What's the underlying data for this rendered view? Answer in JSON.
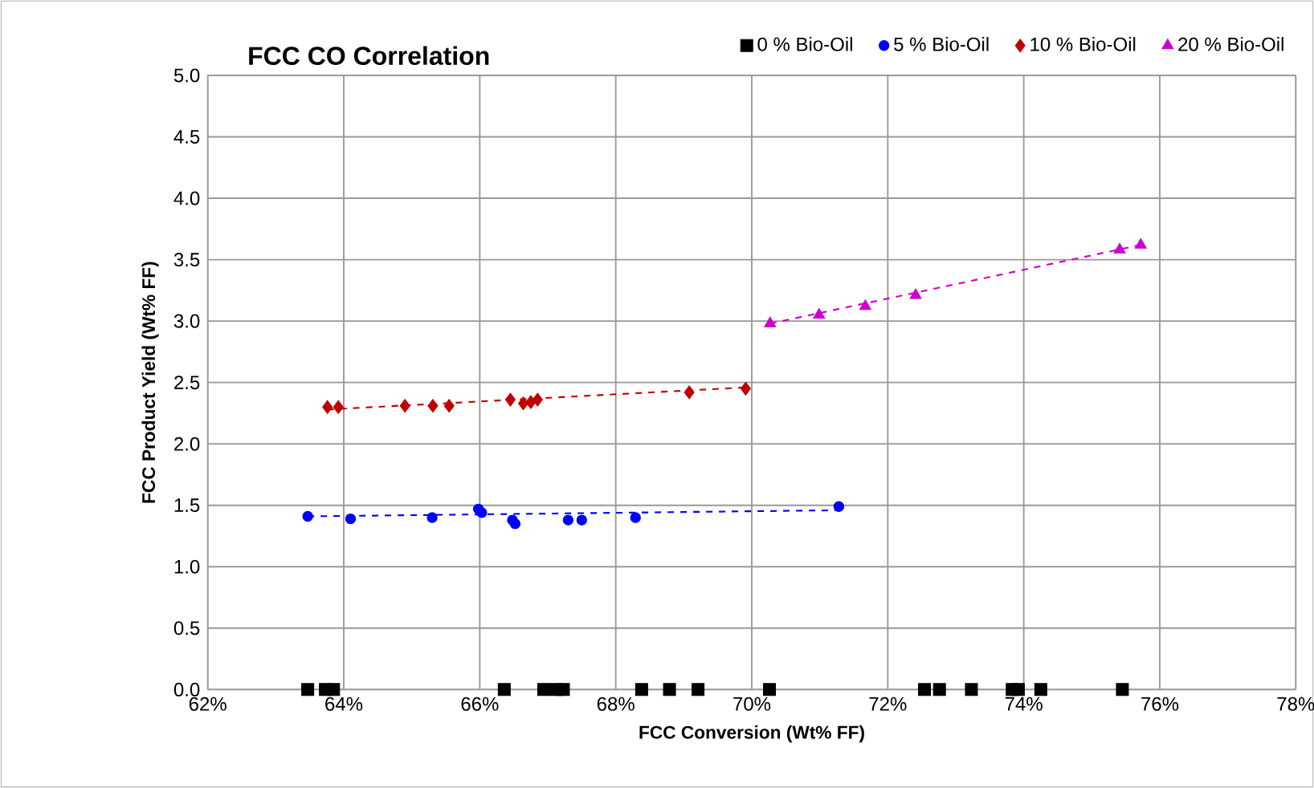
{
  "chart_data": {
    "type": "scatter",
    "title": "FCC CO Correlation",
    "xlabel": "FCC Conversion (Wt% FF)",
    "ylabel": "FCC Product Yield (Wt% FF)",
    "series": [
      {
        "name": "0 % Bio-Oil",
        "color": "#000000",
        "marker": "square",
        "x": [
          63.47,
          63.73,
          63.85,
          66.36,
          66.94,
          67.12,
          67.23,
          68.38,
          68.79,
          69.21,
          70.26,
          72.54,
          72.76,
          73.23,
          73.83,
          73.92,
          74.25,
          75.45
        ],
        "values": [
          0,
          0,
          0,
          0,
          0,
          0,
          0,
          0,
          0,
          0,
          0,
          0,
          0,
          0,
          0,
          0,
          0,
          0
        ]
      },
      {
        "name": "5 % Bio-Oil",
        "color": "#0000ff",
        "marker": "circle",
        "x": [
          63.47,
          64.1,
          65.3,
          65.98,
          66.03,
          66.48,
          66.52,
          67.3,
          67.5,
          68.29,
          71.28
        ],
        "values": [
          1.41,
          1.39,
          1.4,
          1.47,
          1.44,
          1.38,
          1.35,
          1.38,
          1.38,
          1.4,
          1.49
        ]
      },
      {
        "name": "10 % Bio-Oil",
        "color": "#c00000",
        "marker": "diamond",
        "x": [
          63.76,
          63.92,
          64.9,
          65.31,
          65.55,
          66.45,
          66.64,
          66.75,
          66.85,
          69.08,
          69.91
        ],
        "values": [
          2.3,
          2.3,
          2.31,
          2.31,
          2.31,
          2.36,
          2.33,
          2.34,
          2.36,
          2.42,
          2.45
        ]
      },
      {
        "name": "20 % Bio-Oil",
        "color": "#cc00cc",
        "marker": "triangle",
        "x": [
          70.27,
          70.99,
          71.67,
          72.41,
          75.41,
          75.72
        ],
        "values": [
          2.98,
          3.05,
          3.12,
          3.21,
          3.58,
          3.62
        ]
      },
      {
        "type": "line",
        "color": "#0000ff",
        "marker": "none",
        "line_style": "dashed",
        "x": [
          63.47,
          71.28
        ],
        "values": [
          1.41,
          1.46
        ]
      },
      {
        "type": "line",
        "color": "#c00000",
        "marker": "none",
        "line_style": "dashed",
        "x": [
          63.76,
          69.91
        ],
        "values": [
          2.28,
          2.46
        ]
      },
      {
        "type": "line",
        "color": "#cc00cc",
        "marker": "none",
        "line_style": "dashed",
        "x": [
          70.27,
          75.72
        ],
        "values": [
          2.98,
          3.62
        ]
      }
    ],
    "xlim": [
      62,
      78
    ],
    "xticks": [
      {
        "value": 62,
        "label": "62%"
      },
      {
        "value": 64,
        "label": "64%"
      },
      {
        "value": 66,
        "label": "66%"
      },
      {
        "value": 68,
        "label": "68%"
      },
      {
        "value": 70,
        "label": "70%"
      },
      {
        "value": 72,
        "label": "72%"
      },
      {
        "value": 74,
        "label": "74%"
      },
      {
        "value": 76,
        "label": "76%"
      },
      {
        "value": 78,
        "label": "78%"
      }
    ],
    "ylim": [
      0,
      5
    ],
    "yticks": [
      {
        "value": 0,
        "label": "0.0"
      },
      0.5,
      {
        "value": 1,
        "label": "1.0"
      },
      1.5,
      {
        "value": 2,
        "label": "2.0"
      },
      2.5,
      {
        "value": 3,
        "label": "3.0"
      },
      3.5,
      {
        "value": 4,
        "label": "4.0"
      },
      4.5,
      {
        "value": 5,
        "label": "5.0"
      }
    ],
    "grid": true,
    "legend": "top right"
  }
}
